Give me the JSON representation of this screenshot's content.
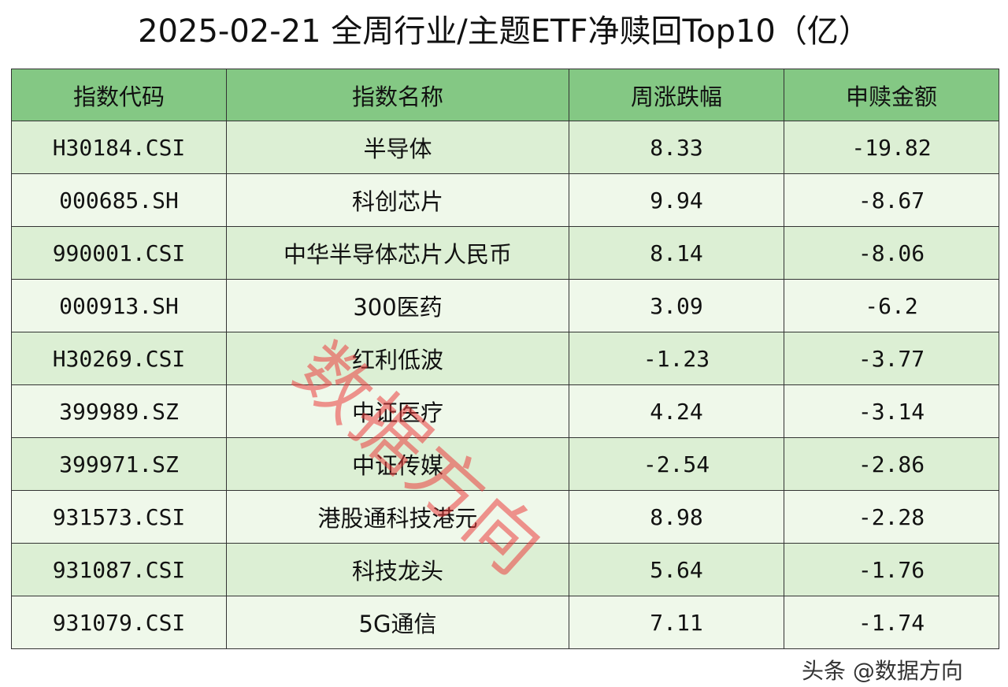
{
  "header": {
    "title": "2025-02-21 全周行业/主题ETF净赎回Top10（亿）"
  },
  "table": {
    "columns": [
      "指数代码",
      "指数名称",
      "周涨跌幅",
      "申赎金额"
    ],
    "rows": [
      [
        "H30184.CSI",
        "半导体",
        "8.33",
        "-19.82"
      ],
      [
        "000685.SH",
        "科创芯片",
        "9.94",
        "-8.67"
      ],
      [
        "990001.CSI",
        "中华半导体芯片人民币",
        "8.14",
        "-8.06"
      ],
      [
        "000913.SH",
        "300医药",
        "3.09",
        "-6.2"
      ],
      [
        "H30269.CSI",
        "红利低波",
        "-1.23",
        "-3.77"
      ],
      [
        "399989.SZ",
        "中证医疗",
        "4.24",
        "-3.14"
      ],
      [
        "399971.SZ",
        "中证传媒",
        "-2.54",
        "-2.86"
      ],
      [
        "931573.CSI",
        "港股通科技港元",
        "8.98",
        "-2.28"
      ],
      [
        "931087.CSI",
        "科技龙头",
        "5.64",
        "-1.76"
      ],
      [
        "931079.CSI",
        "5G通信",
        "7.11",
        "-1.74"
      ]
    ]
  },
  "watermark": "数据方向",
  "footer": "头条 @数据方向"
}
